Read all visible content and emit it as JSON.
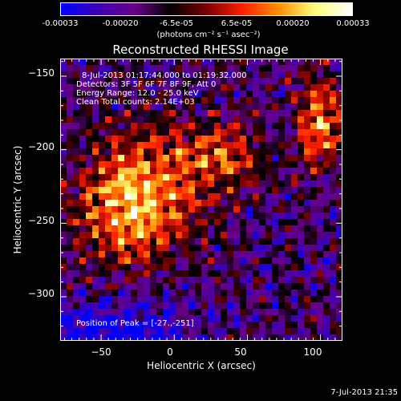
{
  "colorbar": {
    "ticks": [
      "-0.00033",
      "-0.00020",
      "-6.5e-05",
      "6.5e-05",
      "0.00020",
      "0.00033"
    ],
    "tick_values": [
      -0.00033,
      -0.0002,
      -6.5e-05,
      6.5e-05,
      0.0002,
      0.00033
    ],
    "range": [
      -0.00033,
      0.00033
    ],
    "unit_label": "(photons cm⁻² s⁻¹ asec⁻²)",
    "colors": [
      "#0000ff",
      "#3a00b8",
      "#6a008a",
      "#000000",
      "#7a0000",
      "#ff2000",
      "#ff9000",
      "#ffff80",
      "#ffffff"
    ]
  },
  "chart_data": {
    "type": "heatmap",
    "title": "Reconstructed RHESSI Image",
    "xlabel": "Heliocentric X (arcsec)",
    "ylabel": "Heliocentric Y (arcsec)",
    "xlim": [
      -78,
      115
    ],
    "ylim": [
      -330,
      -138
    ],
    "x_ticks": [
      -50,
      0,
      50,
      100
    ],
    "y_ticks": [
      -150,
      -200,
      -250,
      -300
    ],
    "x_tick_labels": [
      "−50",
      "0",
      "50",
      "100"
    ],
    "y_tick_labels": [
      "−150",
      "−200",
      "−250",
      "−300"
    ],
    "annotations": [
      "8-Jul-2013 01:17:44.000 to 01:19:32.000",
      "Detectors: 3F 5F 6F 7F 8F 9F, Att 0",
      "Energy Range: 12.0 - 25.0 keV",
      "Clean     Total counts: 2.14E+03"
    ],
    "peak_label": "Position of Peak = [-27.,-251]",
    "peak": [
      -27,
      -251
    ]
  },
  "timestamp": "7-Jul-2013 21:35"
}
